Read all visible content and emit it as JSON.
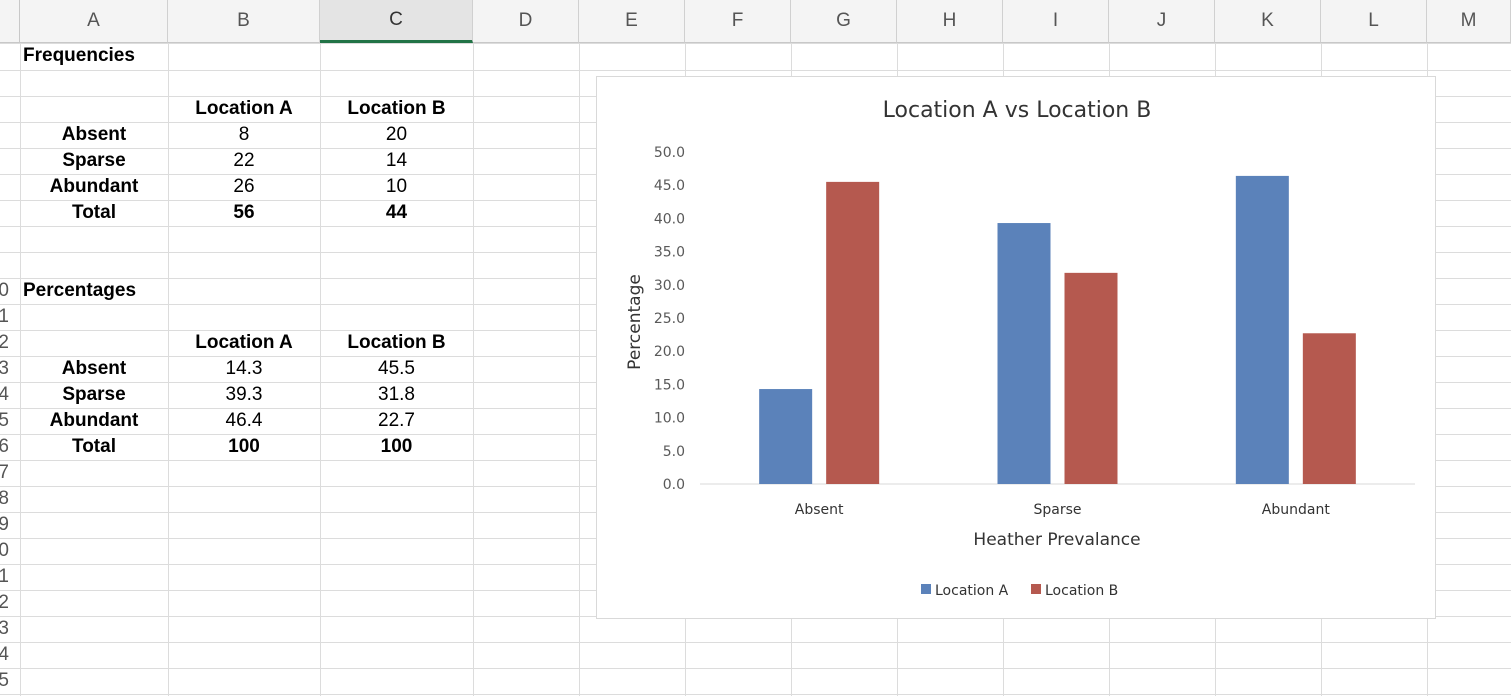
{
  "columns": [
    "A",
    "B",
    "C",
    "D",
    "E",
    "F",
    "G",
    "H",
    "I",
    "J",
    "K",
    "L",
    "M"
  ],
  "selected_column": "C",
  "row_numbers": [
    "0",
    "1",
    "2",
    "3",
    "4",
    "5",
    "6",
    "7",
    "8",
    "9",
    "0",
    "1",
    "2",
    "3",
    "4",
    "5"
  ],
  "frequencies": {
    "title": "Frequencies",
    "header": [
      "Location A",
      "Location B"
    ],
    "rows": [
      {
        "label": "Absent",
        "a": "8",
        "b": "20"
      },
      {
        "label": "Sparse",
        "a": "22",
        "b": "14"
      },
      {
        "label": "Abundant",
        "a": "26",
        "b": "10"
      },
      {
        "label": "Total",
        "a": "56",
        "b": "44"
      }
    ]
  },
  "percentages": {
    "title": "Percentages",
    "header": [
      "Location A",
      "Location B"
    ],
    "rows": [
      {
        "label": "Absent",
        "a": "14.3",
        "b": "45.5"
      },
      {
        "label": "Sparse",
        "a": "39.3",
        "b": "31.8"
      },
      {
        "label": "Abundant",
        "a": "46.4",
        "b": "22.7"
      },
      {
        "label": "Total",
        "a": "100",
        "b": "100"
      }
    ]
  },
  "chart_data": {
    "type": "bar",
    "title": "Location A vs Location B",
    "xlabel": "Heather Prevalance",
    "ylabel": "Percentage",
    "categories": [
      "Absent",
      "Sparse",
      "Abundant"
    ],
    "series": [
      {
        "name": "Location A",
        "values": [
          14.3,
          39.3,
          46.4
        ],
        "color": "#5b82ba"
      },
      {
        "name": "Location B",
        "values": [
          45.5,
          31.8,
          22.7
        ],
        "color": "#b5594f"
      }
    ],
    "ylim": [
      0,
      50
    ],
    "yticks": [
      "0.0",
      "5.0",
      "10.0",
      "15.0",
      "20.0",
      "25.0",
      "30.0",
      "35.0",
      "40.0",
      "45.0",
      "50.0"
    ],
    "legend_position": "bottom",
    "grid": false
  }
}
